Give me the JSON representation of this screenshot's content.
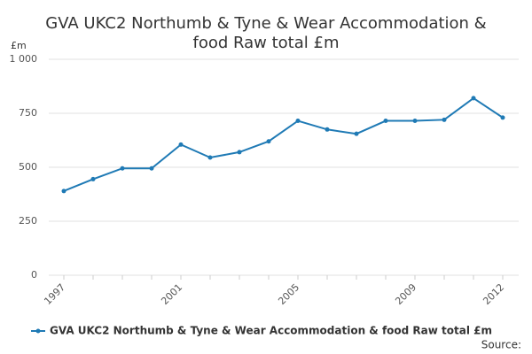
{
  "chart_data": {
    "type": "line",
    "title": "GVA UKC2 Northumb & Tyne & Wear Accommodation & food Raw total £m",
    "y_label": "£m",
    "source": "Source:",
    "x": [
      1997,
      1998,
      1999,
      2000,
      2001,
      2002,
      2003,
      2004,
      2005,
      2006,
      2007,
      2008,
      2009,
      2010,
      2011,
      2012
    ],
    "series": [
      {
        "name": "GVA UKC2 Northumb & Tyne & Wear Accommodation & food Raw total £m",
        "color": "#1f7ab5",
        "values": [
          390,
          445,
          495,
          495,
          605,
          545,
          570,
          620,
          715,
          675,
          655,
          715,
          715,
          720,
          820,
          730
        ]
      }
    ],
    "xlim": [
      1997,
      2012
    ],
    "xticks": [
      1997,
      2001,
      2005,
      2009,
      2012
    ],
    "ylim": [
      0,
      1000
    ],
    "yticks": [
      0,
      250,
      500,
      750,
      {
        "value": 1000,
        "label": "1 000"
      }
    ],
    "grid": true
  }
}
